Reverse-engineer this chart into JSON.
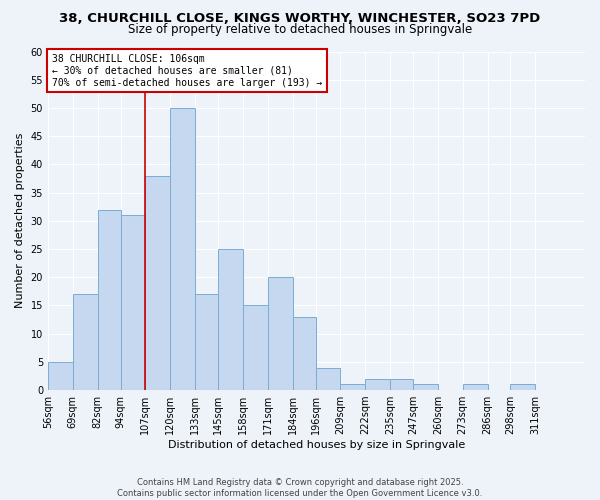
{
  "title": "38, CHURCHILL CLOSE, KINGS WORTHY, WINCHESTER, SO23 7PD",
  "subtitle": "Size of property relative to detached houses in Springvale",
  "xlabel": "Distribution of detached houses by size in Springvale",
  "ylabel": "Number of detached properties",
  "bar_labels": [
    "56sqm",
    "69sqm",
    "82sqm",
    "94sqm",
    "107sqm",
    "120sqm",
    "133sqm",
    "145sqm",
    "158sqm",
    "171sqm",
    "184sqm",
    "196sqm",
    "209sqm",
    "222sqm",
    "235sqm",
    "247sqm",
    "260sqm",
    "273sqm",
    "286sqm",
    "298sqm",
    "311sqm"
  ],
  "bar_values": [
    5,
    17,
    32,
    31,
    38,
    50,
    17,
    25,
    15,
    20,
    13,
    4,
    1,
    2,
    2,
    1,
    0,
    1,
    0,
    1,
    0
  ],
  "bin_edges": [
    56,
    69,
    82,
    94,
    107,
    120,
    133,
    145,
    158,
    171,
    184,
    196,
    209,
    222,
    235,
    247,
    260,
    273,
    286,
    298,
    311,
    324
  ],
  "bar_color": "#c5d8f0",
  "bar_edge_color": "#7aadd4",
  "reference_line_x": 107,
  "ylim": [
    0,
    60
  ],
  "yticks": [
    0,
    5,
    10,
    15,
    20,
    25,
    30,
    35,
    40,
    45,
    50,
    55,
    60
  ],
  "annotation_title": "38 CHURCHILL CLOSE: 106sqm",
  "annotation_line1": "← 30% of detached houses are smaller (81)",
  "annotation_line2": "70% of semi-detached houses are larger (193) →",
  "annotation_box_color": "#ffffff",
  "annotation_box_edge": "#cc0000",
  "ref_line_color": "#cc0000",
  "background_color": "#eef2f9",
  "grid_color": "#ffffff",
  "footer1": "Contains HM Land Registry data © Crown copyright and database right 2025.",
  "footer2": "Contains public sector information licensed under the Open Government Licence v3.0.",
  "title_fontsize": 9.5,
  "subtitle_fontsize": 8.5,
  "tick_fontsize": 7,
  "axis_label_fontsize": 8,
  "annotation_fontsize": 7,
  "footer_fontsize": 6
}
